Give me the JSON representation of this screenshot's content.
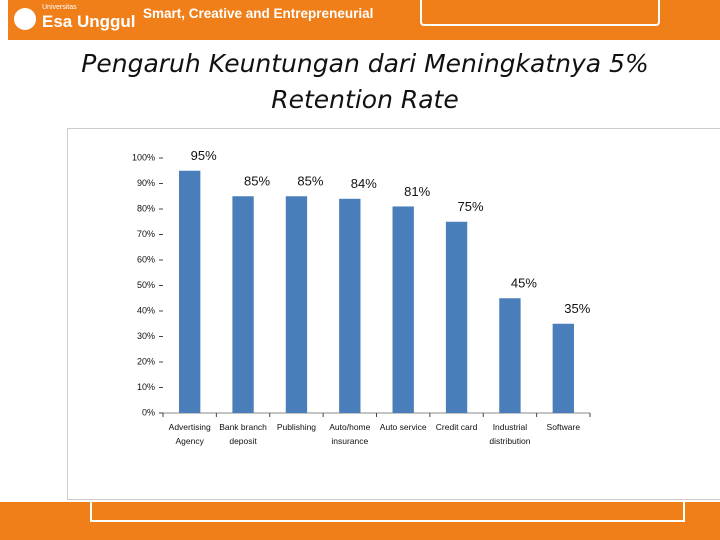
{
  "header": {
    "university": "Universitas",
    "logo": "Esa Unggul",
    "tagline": "Smart, Creative and Entrepreneurial"
  },
  "chart_data": {
    "type": "bar",
    "title": "Pengaruh Keuntungan dari Meningkatnya 5% Retention Rate",
    "categories": [
      "Advertising Agency",
      "Bank branch deposit",
      "Publishing",
      "Auto/home insurance",
      "Auto service",
      "Credit card",
      "Industrial distribution",
      "Software"
    ],
    "values": [
      95,
      85,
      85,
      84,
      81,
      75,
      45,
      35
    ],
    "value_labels": [
      "95%",
      "85%",
      "85%",
      "84%",
      "81%",
      "75%",
      "45%",
      "35%"
    ],
    "color": "#4a7ebb",
    "ylim": [
      0,
      100
    ],
    "yticks": [
      {
        "value": 0,
        "label": "0%"
      },
      {
        "value": 10,
        "label": "10%"
      },
      {
        "value": 20,
        "label": "20%"
      },
      {
        "value": 30,
        "label": "30%"
      },
      {
        "value": 40,
        "label": "40%"
      },
      {
        "value": 50,
        "label": "50%"
      },
      {
        "value": 60,
        "label": "60%"
      },
      {
        "value": 70,
        "label": "70%"
      },
      {
        "value": 80,
        "label": "80%"
      },
      {
        "value": 90,
        "label": "90%"
      },
      {
        "value": 100,
        "label": "100%"
      }
    ],
    "grid": false
  }
}
